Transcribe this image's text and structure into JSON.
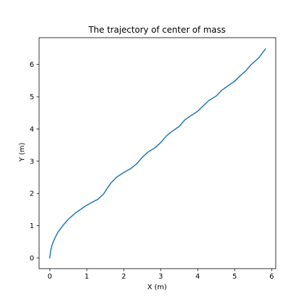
{
  "chart_data": {
    "type": "line",
    "title": "The trajectory of center of mass",
    "xlabel": "X (m)",
    "ylabel": "Y (m)",
    "xlim": [
      -0.29,
      6.11
    ],
    "ylim": [
      -0.33,
      6.83
    ],
    "xticks": [
      0,
      1,
      2,
      3,
      4,
      5,
      6
    ],
    "yticks": [
      0,
      1,
      2,
      3,
      4,
      5,
      6
    ],
    "grid": false,
    "series": [
      {
        "color": "#1f77b4",
        "points": [
          [
            0.0,
            0.0
          ],
          [
            0.02,
            0.2
          ],
          [
            0.06,
            0.4
          ],
          [
            0.13,
            0.6
          ],
          [
            0.22,
            0.8
          ],
          [
            0.35,
            1.0
          ],
          [
            0.5,
            1.2
          ],
          [
            0.7,
            1.4
          ],
          [
            0.95,
            1.6
          ],
          [
            1.1,
            1.7
          ],
          [
            1.3,
            1.82
          ],
          [
            1.45,
            1.98
          ],
          [
            1.55,
            2.15
          ],
          [
            1.65,
            2.32
          ],
          [
            1.8,
            2.5
          ],
          [
            2.0,
            2.65
          ],
          [
            2.2,
            2.78
          ],
          [
            2.35,
            2.92
          ],
          [
            2.5,
            3.12
          ],
          [
            2.65,
            3.28
          ],
          [
            2.85,
            3.42
          ],
          [
            3.0,
            3.58
          ],
          [
            3.15,
            3.78
          ],
          [
            3.3,
            3.92
          ],
          [
            3.5,
            4.08
          ],
          [
            3.65,
            4.28
          ],
          [
            3.8,
            4.4
          ],
          [
            4.0,
            4.55
          ],
          [
            4.15,
            4.72
          ],
          [
            4.3,
            4.88
          ],
          [
            4.5,
            5.02
          ],
          [
            4.65,
            5.2
          ],
          [
            4.8,
            5.32
          ],
          [
            5.0,
            5.48
          ],
          [
            5.15,
            5.65
          ],
          [
            5.3,
            5.8
          ],
          [
            5.45,
            6.0
          ],
          [
            5.65,
            6.2
          ],
          [
            5.83,
            6.48
          ]
        ]
      }
    ]
  }
}
